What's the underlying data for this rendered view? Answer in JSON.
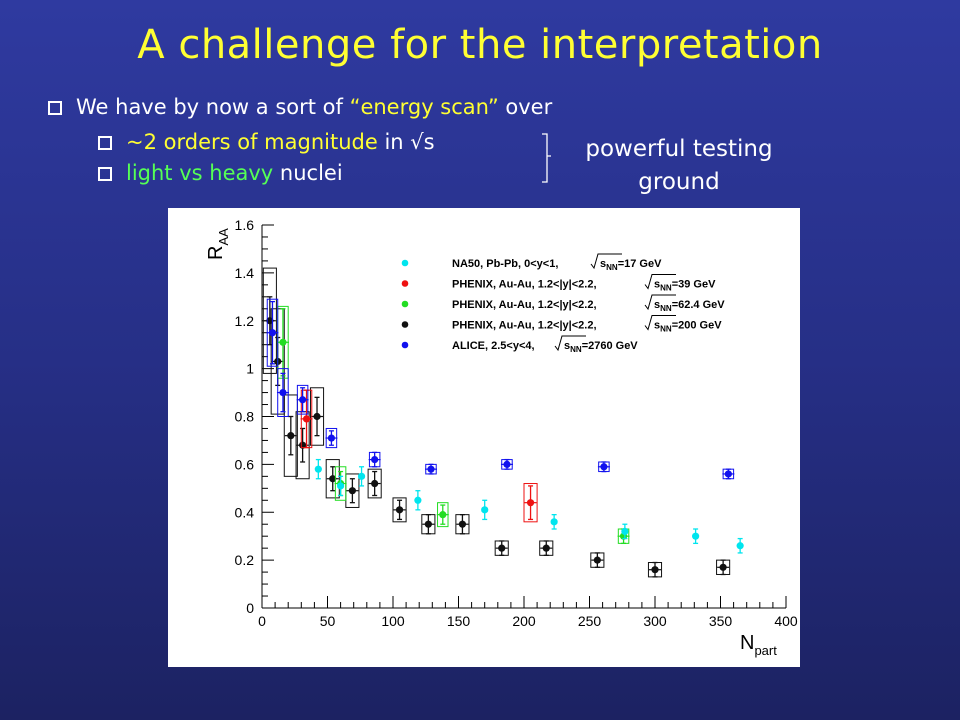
{
  "slide": {
    "title": "A challenge for the interpretation",
    "bullets": {
      "line1": {
        "pre": "We have by now a sort of ",
        "em": "“energy scan”",
        "post": " over"
      },
      "line2": {
        "pre": "~2 ",
        "em": "orders of magnitude",
        "post": " in √s"
      },
      "line3": {
        "em1": "light",
        "mid": " vs ",
        "em2": "heavy",
        "post": " nuclei"
      }
    },
    "side_note": {
      "line1": "powerful testing",
      "line2": "ground"
    },
    "colors": {
      "title": "#ffff33",
      "highlight_yellow": "#ffff33",
      "highlight_green": "#55ff55",
      "text": "#ffffff"
    }
  },
  "chart_data": {
    "type": "scatter",
    "ylabel_main": "R",
    "ylabel_sub": "AA",
    "xlabel_main": "N",
    "xlabel_sub": "part",
    "xlim": [
      0,
      400
    ],
    "ylim": [
      0,
      1.6
    ],
    "xticks": [
      "0",
      "50",
      "100",
      "150",
      "200",
      "250",
      "300",
      "350",
      "400"
    ],
    "yticks": [
      "0",
      "0.2",
      "0.4",
      "0.6",
      "0.8",
      "1",
      "1.2",
      "1.4",
      "1.6"
    ],
    "grid": false,
    "legend_position": "top-right",
    "series": [
      {
        "name": "NA50, Pb-Pb, 0<y<1,",
        "energy_label": "=17 GeV",
        "color": "#00e5ee",
        "points": [
          {
            "x": 43,
            "y": 0.58,
            "err": 0.04
          },
          {
            "x": 60,
            "y": 0.51,
            "err": 0.04
          },
          {
            "x": 76,
            "y": 0.55,
            "err": 0.04
          },
          {
            "x": 119,
            "y": 0.45,
            "err": 0.04
          },
          {
            "x": 170,
            "y": 0.41,
            "err": 0.04
          },
          {
            "x": 223,
            "y": 0.36,
            "err": 0.03
          },
          {
            "x": 277,
            "y": 0.32,
            "err": 0.03
          },
          {
            "x": 331,
            "y": 0.3,
            "err": 0.03
          },
          {
            "x": 365,
            "y": 0.26,
            "err": 0.03
          }
        ]
      },
      {
        "name": "PHENIX, Au-Au, 1.2<|y|<2.2,",
        "energy_label": "=39 GeV",
        "color": "#ee1111",
        "points": [
          {
            "x": 34,
            "y": 0.79,
            "err": 0.12,
            "sys": 0.12,
            "bw": 4
          },
          {
            "x": 205,
            "y": 0.44,
            "err": 0.07,
            "sys": 0.08,
            "bw": 5
          }
        ]
      },
      {
        "name": "PHENIX, Au-Au, 1.2<|y|<2.2,",
        "energy_label": "=62.4 GeV",
        "color": "#22dd22",
        "points": [
          {
            "x": 16,
            "y": 1.11,
            "err": 0.14,
            "sys": 0.15,
            "bw": 4
          },
          {
            "x": 60,
            "y": 0.52,
            "err": 0.05,
            "sys": 0.07,
            "bw": 4
          },
          {
            "x": 138,
            "y": 0.39,
            "err": 0.04,
            "sys": 0.05,
            "bw": 4
          },
          {
            "x": 276,
            "y": 0.3,
            "err": 0.03,
            "sys": 0.03,
            "bw": 4
          }
        ]
      },
      {
        "name": "PHENIX, Au-Au, 1.2<|y|<2.2,",
        "energy_label": "=200 GeV",
        "color": "#111111",
        "points": [
          {
            "x": 6,
            "y": 1.2,
            "err": 0.1,
            "sys": 0.22,
            "bw": 5
          },
          {
            "x": 12,
            "y": 1.03,
            "err": 0.1,
            "sys": 0.22,
            "bw": 5
          },
          {
            "x": 22,
            "y": 0.72,
            "err": 0.08,
            "sys": 0.17,
            "bw": 5
          },
          {
            "x": 31,
            "y": 0.68,
            "err": 0.07,
            "sys": 0.14,
            "bw": 5
          },
          {
            "x": 42,
            "y": 0.8,
            "err": 0.08,
            "sys": 0.12,
            "bw": 5
          },
          {
            "x": 54,
            "y": 0.54,
            "err": 0.05,
            "sys": 0.08,
            "bw": 5
          },
          {
            "x": 69,
            "y": 0.49,
            "err": 0.05,
            "sys": 0.07,
            "bw": 5
          },
          {
            "x": 86,
            "y": 0.52,
            "err": 0.05,
            "sys": 0.06,
            "bw": 5
          },
          {
            "x": 105,
            "y": 0.41,
            "err": 0.04,
            "sys": 0.05,
            "bw": 5
          },
          {
            "x": 127,
            "y": 0.35,
            "err": 0.04,
            "sys": 0.04,
            "bw": 5
          },
          {
            "x": 153,
            "y": 0.35,
            "err": 0.04,
            "sys": 0.04,
            "bw": 5
          },
          {
            "x": 183,
            "y": 0.25,
            "err": 0.03,
            "sys": 0.03,
            "bw": 5
          },
          {
            "x": 217,
            "y": 0.25,
            "err": 0.03,
            "sys": 0.03,
            "bw": 5
          },
          {
            "x": 256,
            "y": 0.2,
            "err": 0.03,
            "sys": 0.03,
            "bw": 5
          },
          {
            "x": 300,
            "y": 0.16,
            "err": 0.03,
            "sys": 0.03,
            "bw": 5
          },
          {
            "x": 352,
            "y": 0.17,
            "err": 0.03,
            "sys": 0.03,
            "bw": 5
          }
        ]
      },
      {
        "name": "ALICE, 2.5<y<4,",
        "energy_label": "=2760 GeV",
        "color": "#1111ee",
        "points": [
          {
            "x": 8,
            "y": 1.15,
            "err": 0.13,
            "sys": 0.14,
            "bw": 4
          },
          {
            "x": 16,
            "y": 0.9,
            "err": 0.08,
            "sys": 0.1,
            "bw": 4
          },
          {
            "x": 31,
            "y": 0.87,
            "err": 0.05,
            "sys": 0.06,
            "bw": 4
          },
          {
            "x": 53,
            "y": 0.71,
            "err": 0.03,
            "sys": 0.04,
            "bw": 4
          },
          {
            "x": 86,
            "y": 0.62,
            "err": 0.03,
            "sys": 0.03,
            "bw": 4
          },
          {
            "x": 129,
            "y": 0.58,
            "err": 0.02,
            "sys": 0.02,
            "bw": 4
          },
          {
            "x": 187,
            "y": 0.6,
            "err": 0.02,
            "sys": 0.02,
            "bw": 4
          },
          {
            "x": 261,
            "y": 0.59,
            "err": 0.02,
            "sys": 0.02,
            "bw": 4
          },
          {
            "x": 356,
            "y": 0.56,
            "err": 0.02,
            "sys": 0.02,
            "bw": 4
          }
        ]
      }
    ]
  }
}
